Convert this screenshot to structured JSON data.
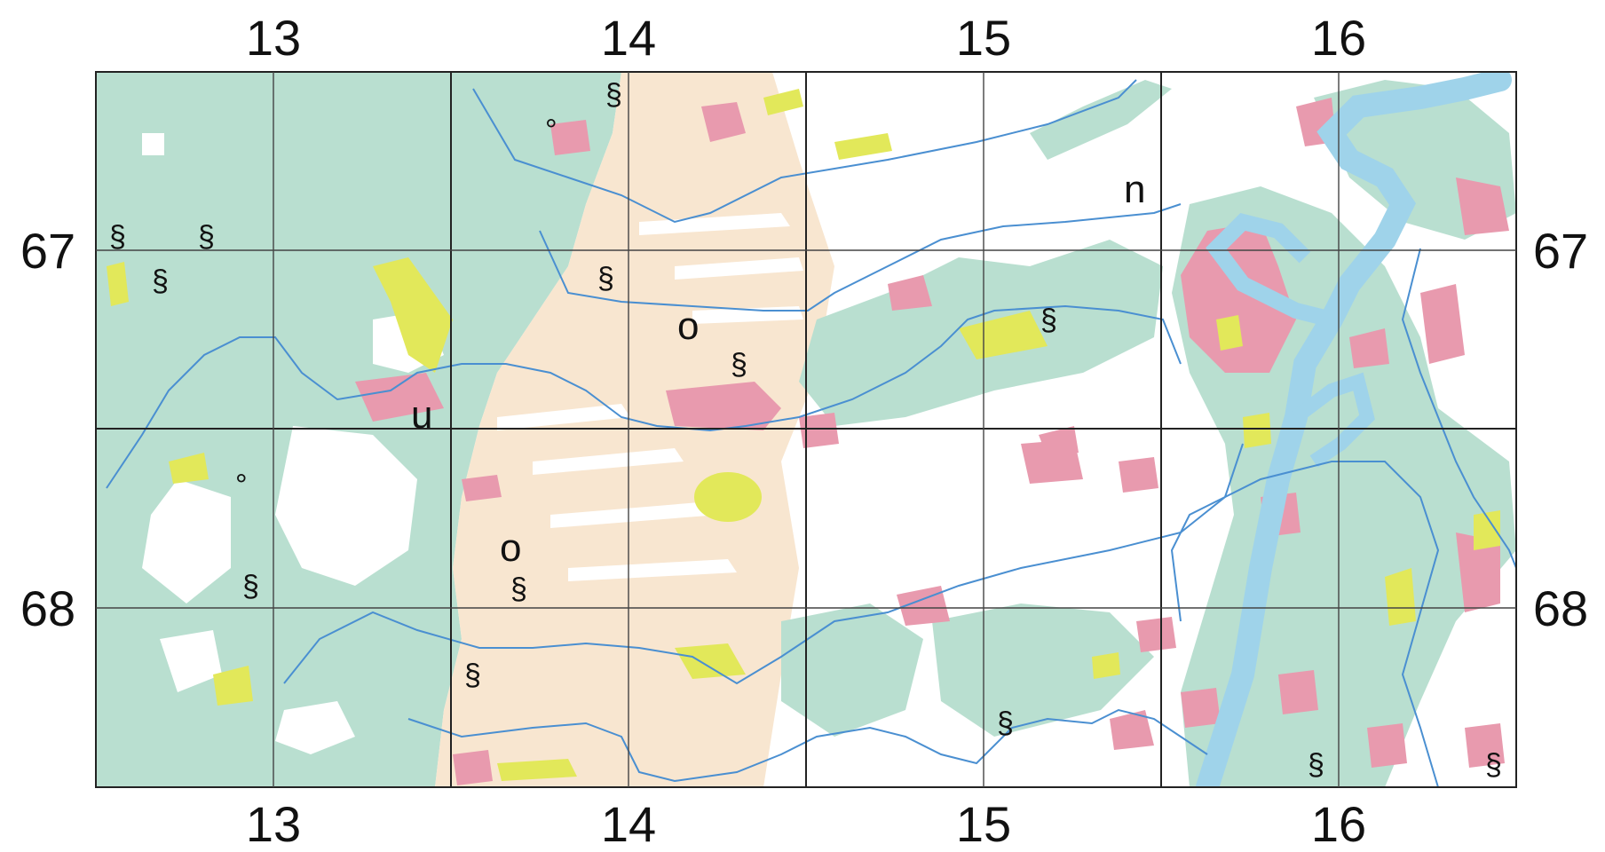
{
  "map": {
    "colors": {
      "forest": "#b9dfd0",
      "settlement": "#e89aae",
      "grassland": "#e2e85a",
      "farmland": "#f8e6d0",
      "open": "#ffffff",
      "river": "#9fd3ea",
      "stream": "#4a8fd1",
      "grid": "#222222"
    },
    "top_labels": [
      "13",
      "14",
      "15",
      "16"
    ],
    "bottom_labels": [
      "13",
      "14",
      "15",
      "16"
    ],
    "left_labels": [
      "67",
      "68"
    ],
    "right_labels": [
      "67",
      "68"
    ],
    "symbols": [
      "§",
      "§",
      "§",
      "§",
      "§",
      "§",
      "§",
      "§",
      "§",
      "§",
      "§",
      "§",
      "§",
      "o",
      "o",
      "°",
      "°",
      "n",
      "u"
    ]
  }
}
